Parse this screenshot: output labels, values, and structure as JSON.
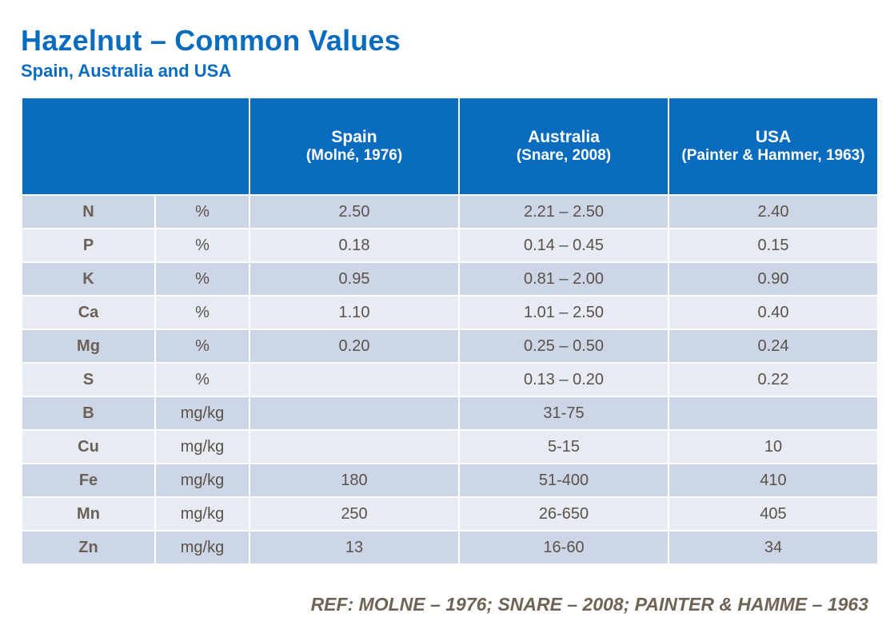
{
  "title": "Hazelnut – Common Values",
  "subtitle": "Spain, Australia and USA",
  "header": {
    "spain": {
      "name": "Spain",
      "source": "(Molné, 1976)"
    },
    "australia": {
      "name": "Australia",
      "source": "(Snare, 2008)"
    },
    "usa": {
      "name": "USA",
      "source": "(Painter & Hammer, 1963)"
    }
  },
  "rows": [
    {
      "element": "N",
      "unit": "%",
      "spain": "2.50",
      "australia": "2.21 – 2.50",
      "usa": "2.40"
    },
    {
      "element": "P",
      "unit": "%",
      "spain": "0.18",
      "australia": "0.14 – 0.45",
      "usa": "0.15"
    },
    {
      "element": "K",
      "unit": "%",
      "spain": "0.95",
      "australia": "0.81 – 2.00",
      "usa": "0.90"
    },
    {
      "element": "Ca",
      "unit": "%",
      "spain": "1.10",
      "australia": "1.01 – 2.50",
      "usa": "0.40"
    },
    {
      "element": "Mg",
      "unit": "%",
      "spain": "0.20",
      "australia": "0.25 – 0.50",
      "usa": "0.24"
    },
    {
      "element": "S",
      "unit": "%",
      "spain": "",
      "australia": "0.13 – 0.20",
      "usa": "0.22"
    },
    {
      "element": "B",
      "unit": "mg/kg",
      "spain": "",
      "australia": "31-75",
      "usa": ""
    },
    {
      "element": "Cu",
      "unit": "mg/kg",
      "spain": "",
      "australia": "5-15",
      "usa": "10"
    },
    {
      "element": "Fe",
      "unit": "mg/kg",
      "spain": "180",
      "australia": "51-400",
      "usa": "410"
    },
    {
      "element": "Mn",
      "unit": "mg/kg",
      "spain": "250",
      "australia": "26-650",
      "usa": "405"
    },
    {
      "element": "Zn",
      "unit": "mg/kg",
      "spain": "13",
      "australia": "16-60",
      "usa": "34"
    }
  ],
  "reference": "REF: MOLNE – 1976; SNARE – 2008; PAINTER & HAMME – 1963",
  "colors": {
    "header_blue": "#0a6cbf",
    "row_dark": "#cdd6e6",
    "row_light": "#e7ebf4",
    "body_text": "#5c5149"
  }
}
